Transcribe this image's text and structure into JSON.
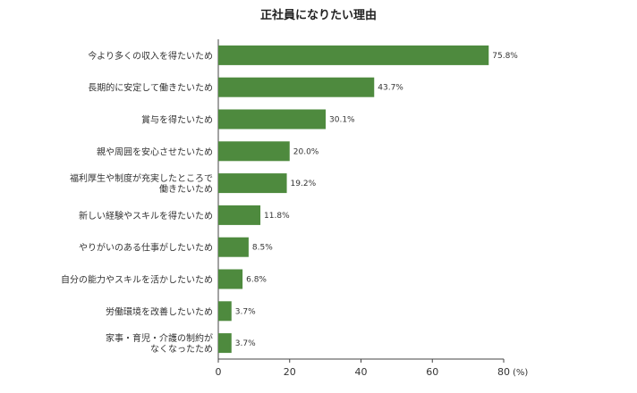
{
  "chart_data": {
    "type": "bar",
    "orientation": "horizontal",
    "title": "正社員になりたい理由",
    "categories": [
      "今より多くの収入を得たいため",
      "長期的に安定して働きたいため",
      "賞与を得たいため",
      "親や周囲を安心させたいため",
      "福利厚生や制度が充実したところで\n働きたいため",
      "新しい経験やスキルを得たいため",
      "やりがいのある仕事がしたいため",
      "自分の能力やスキルを活かしたいため",
      "労働環境を改善したいため",
      "家事・育児・介護の制約が\nなくなったため"
    ],
    "values": [
      75.8,
      43.7,
      30.1,
      20.0,
      19.2,
      11.8,
      8.5,
      6.8,
      3.7,
      3.7
    ],
    "value_labels": [
      "75.8%",
      "43.7%",
      "30.1%",
      "20.0%",
      "19.2%",
      "11.8%",
      "8.5%",
      "6.8%",
      "3.7%",
      "3.7%"
    ],
    "xticks": [
      "0",
      "20",
      "40",
      "60",
      "80"
    ],
    "xlim": [
      0,
      80
    ],
    "x_unit": "(%)",
    "bar_color": "#4e8a3e",
    "grid": false
  }
}
